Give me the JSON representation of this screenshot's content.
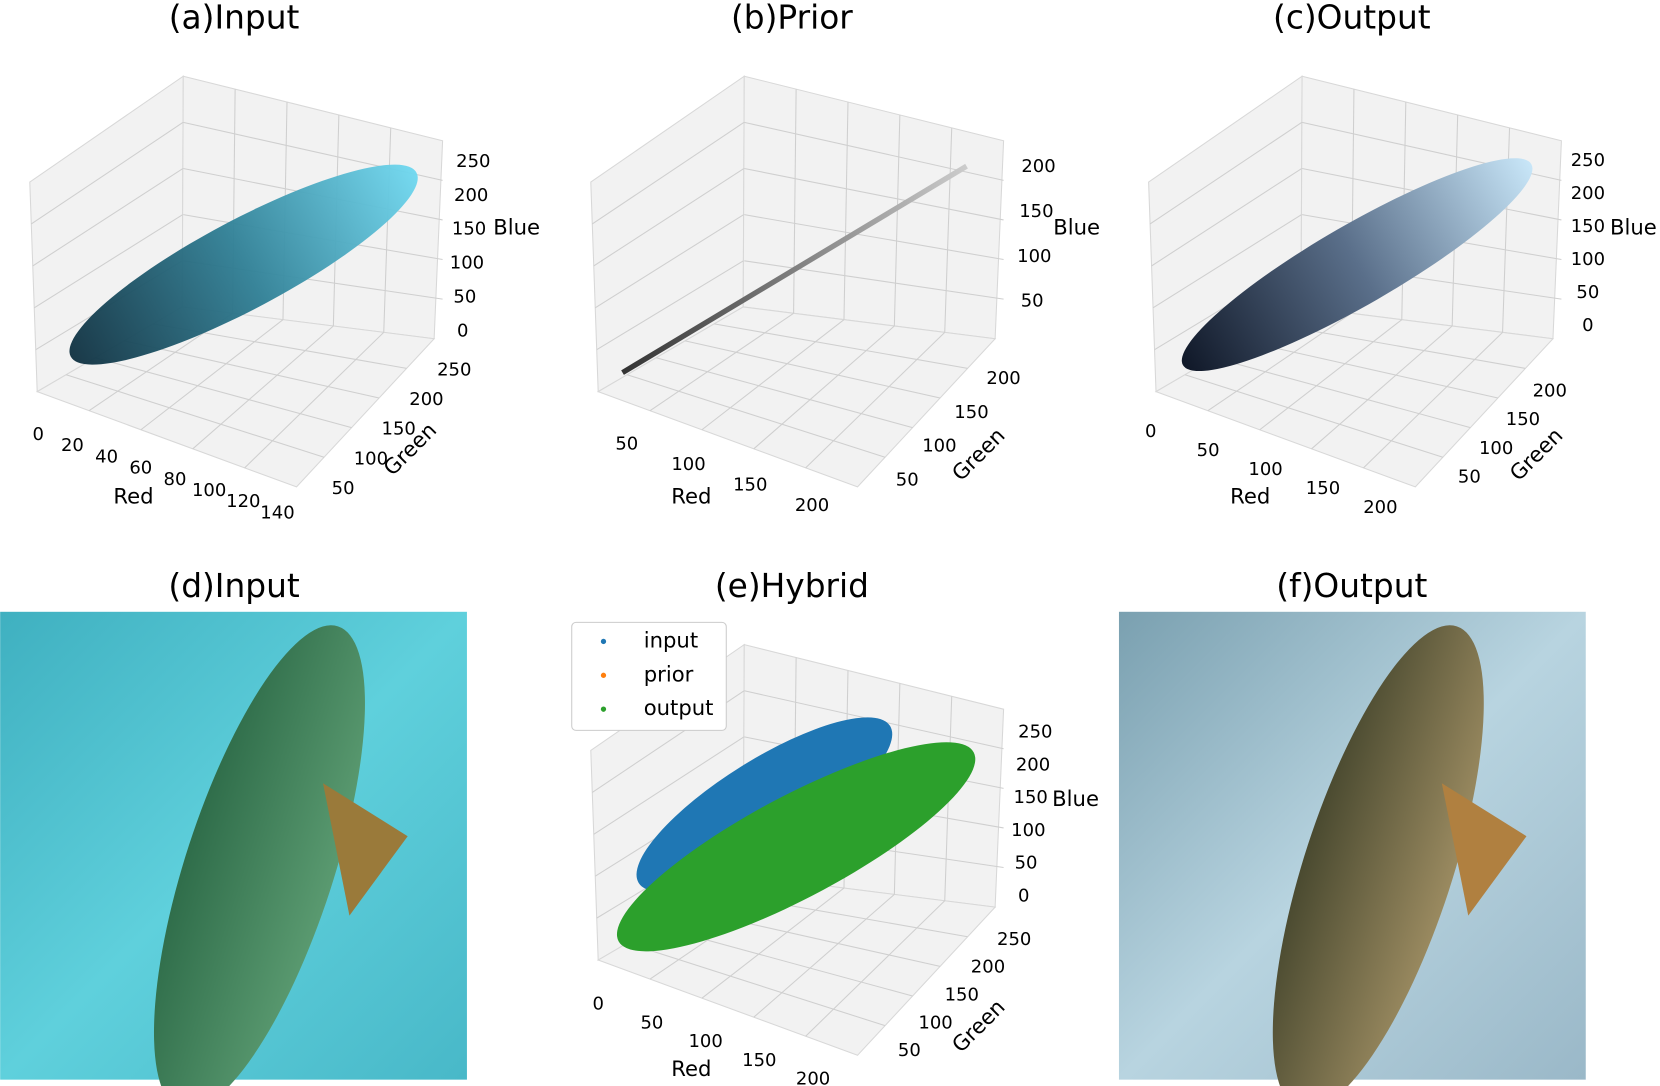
{
  "panels": [
    {
      "title": "(a)Input",
      "x_label": "Red",
      "y_label": "Green",
      "z_label": "Blue",
      "x_ticks": [
        0,
        20,
        40,
        60,
        80,
        100,
        120,
        140
      ],
      "y_ticks": [
        50,
        100,
        150,
        200,
        250
      ],
      "z_ticks": [
        0,
        50,
        100,
        150,
        200,
        250
      ]
    },
    {
      "title": "(b)Prior",
      "x_label": "Red",
      "y_label": "Green",
      "z_label": "Blue",
      "x_ticks": [
        50,
        100,
        150,
        200
      ],
      "y_ticks": [
        50,
        100,
        150,
        200
      ],
      "z_ticks": [
        50,
        100,
        150,
        200
      ]
    },
    {
      "title": "(c)Output",
      "x_label": "Red",
      "y_label": "Green",
      "z_label": "Blue",
      "x_ticks": [
        0,
        50,
        100,
        150,
        200
      ],
      "y_ticks": [
        50,
        100,
        150,
        200
      ],
      "z_ticks": [
        0,
        50,
        100,
        150,
        200,
        250
      ]
    },
    {
      "title": "(d)Input"
    },
    {
      "title": "(e)Hybrid",
      "x_label": "Red",
      "y_label": "Green",
      "z_label": "Blue",
      "x_ticks": [
        0,
        50,
        100,
        150,
        200
      ],
      "y_ticks": [
        50,
        100,
        150,
        200,
        250
      ],
      "z_ticks": [
        0,
        50,
        100,
        150,
        200,
        250
      ],
      "legend": [
        {
          "label": "input",
          "color": "#1f77b4"
        },
        {
          "label": "prior",
          "color": "#ff7f0e"
        },
        {
          "label": "output",
          "color": "#2ca02c"
        }
      ]
    },
    {
      "title": "(f)Output"
    }
  ]
}
